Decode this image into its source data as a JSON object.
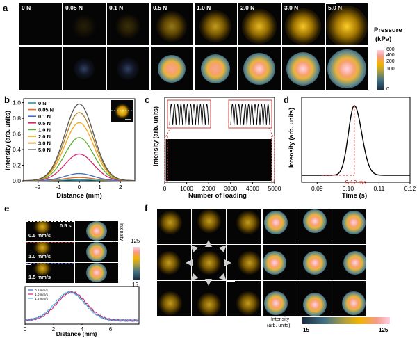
{
  "panel_a": {
    "letter": "a",
    "force_labels": [
      "0 N",
      "0.05 N",
      "0.1 N",
      "0.5 N",
      "1.0 N",
      "2.0 N",
      "3.0 N",
      "5.0 N"
    ],
    "colorbar_title": [
      "Pressure",
      "(kPa)"
    ],
    "colorbar_ticks": [
      "600",
      "400",
      "200",
      "100",
      "0"
    ],
    "colors": {
      "low": "#1c2a3f",
      "mid": "#f0b400",
      "high": "#ffd0e4"
    }
  },
  "chart_data": [
    {
      "id": "b",
      "type": "line",
      "letter": "b",
      "xlabel": "Distance (mm)",
      "ylabel": "Intensity (arb. units)",
      "xlim": [
        -2.7,
        2.7
      ],
      "ylim": [
        0,
        1.05
      ],
      "xticks": [
        "-2",
        "-1",
        "0",
        "1",
        "2"
      ],
      "yticks": [
        "0.0",
        "0.2",
        "0.4",
        "0.6",
        "0.8",
        "1.0"
      ],
      "grid": false,
      "legend": "top-left",
      "series": [
        {
          "name": "0 N",
          "color": "#1e9aa6",
          "peak": 0.01
        },
        {
          "name": "0.05 N",
          "color": "#e86a1e",
          "peak": 0.04
        },
        {
          "name": "0.1 N",
          "color": "#3a6fc4",
          "peak": 0.09
        },
        {
          "name": "0.5 N",
          "color": "#d8246e",
          "peak": 0.34
        },
        {
          "name": "1.0 N",
          "color": "#5aae32",
          "peak": 0.55
        },
        {
          "name": "2.0 N",
          "color": "#f0a818",
          "peak": 0.74
        },
        {
          "name": "3.0 N",
          "color": "#b08020",
          "peak": 0.87
        },
        {
          "name": "5.0 N",
          "color": "#555555",
          "peak": 0.98
        }
      ]
    },
    {
      "id": "c",
      "type": "line",
      "letter": "c",
      "xlabel": "Number of loading",
      "ylabel": "Intensity (arb. units)",
      "xlim": [
        0,
        5000
      ],
      "xticks": [
        "0",
        "1000",
        "2000",
        "3000",
        "4000",
        "5000"
      ]
    },
    {
      "id": "d",
      "type": "line",
      "letter": "d",
      "xlabel": "Time (s)",
      "ylabel": "Intensity (arb. units)",
      "xlim": [
        0.085,
        0.12
      ],
      "xticks": [
        "0.09",
        "0.10",
        "0.11",
        "0.12"
      ],
      "annotation": "9.12 ms",
      "peak_x": 0.102
    },
    {
      "id": "e",
      "type": "line",
      "xlabel": "Distance (mm)",
      "xlim": [
        0,
        8
      ],
      "xticks": [
        "0",
        "2",
        "4",
        "6"
      ],
      "legend": "top-left",
      "series": [
        {
          "name": "0.5 mm/s",
          "color": "#3a6fc4"
        },
        {
          "name": "1.0 mm/s",
          "color": "#d8246e"
        },
        {
          "name": "1.5 mm/s",
          "color": "#5aaed8"
        }
      ]
    }
  ],
  "panel_e": {
    "letter": "e",
    "time_label": "0.5 s",
    "speed_labels": [
      "0.5 mm/s",
      "1.0 mm/s",
      "1.5 mm/s"
    ],
    "colorbar_title": [
      "Intensity",
      "(arb. units)"
    ],
    "colorbar_ticks": [
      "125",
      "15"
    ]
  },
  "panel_f": {
    "letter": "f",
    "colorbar_title": [
      "Intensity",
      "(arb. units)"
    ],
    "colorbar_ticks": [
      "15",
      "125"
    ]
  }
}
